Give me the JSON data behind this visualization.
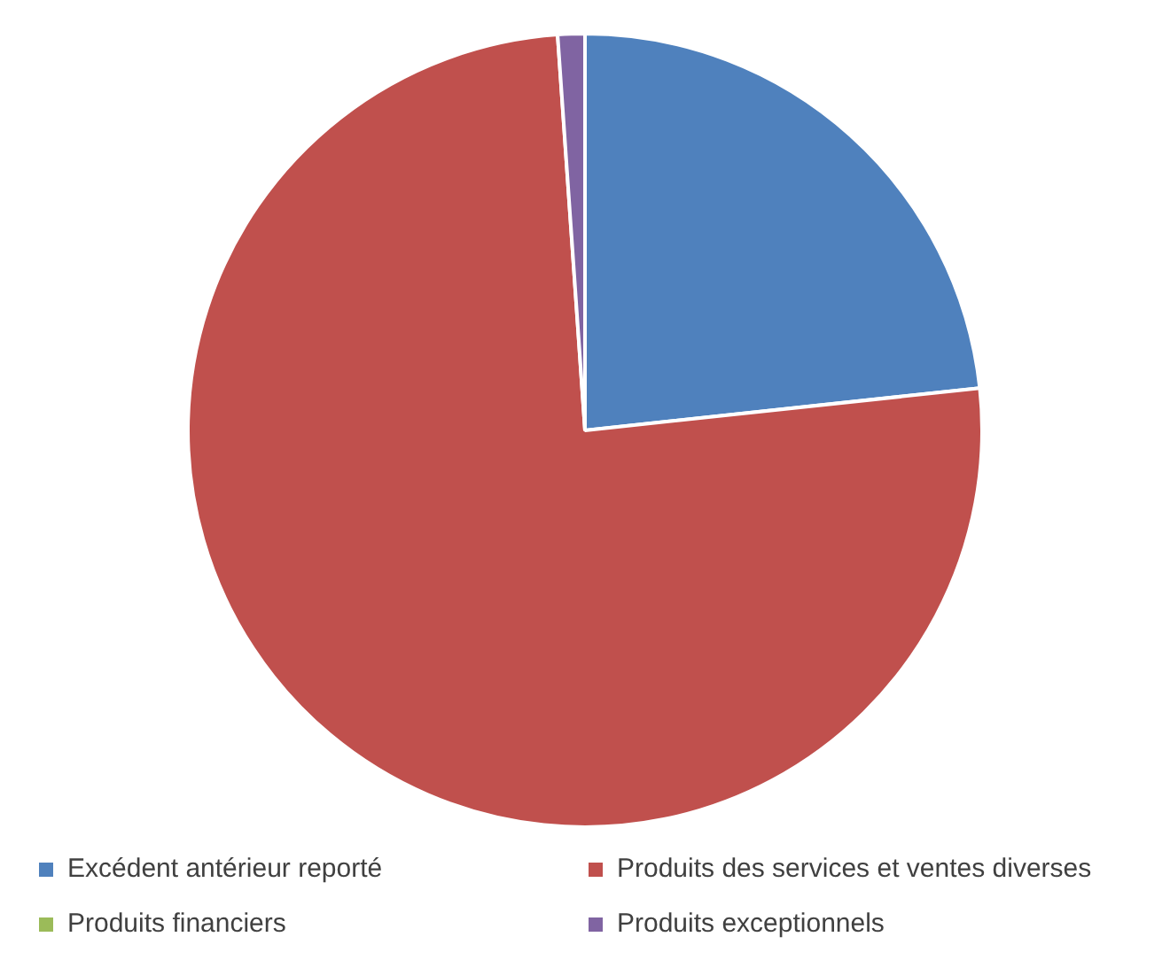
{
  "chart_data": {
    "type": "pie",
    "categories": [
      "Excédent antérieur reporté",
      "Produits des services et ventes diverses",
      "Produits financiers",
      "Produits exceptionnels"
    ],
    "values": [
      23.3,
      75.6,
      null,
      1.1
    ],
    "colors": [
      "#4f81bd",
      "#c0504d",
      "#9bbb59",
      "#8064a2"
    ],
    "legend": "bottom"
  }
}
